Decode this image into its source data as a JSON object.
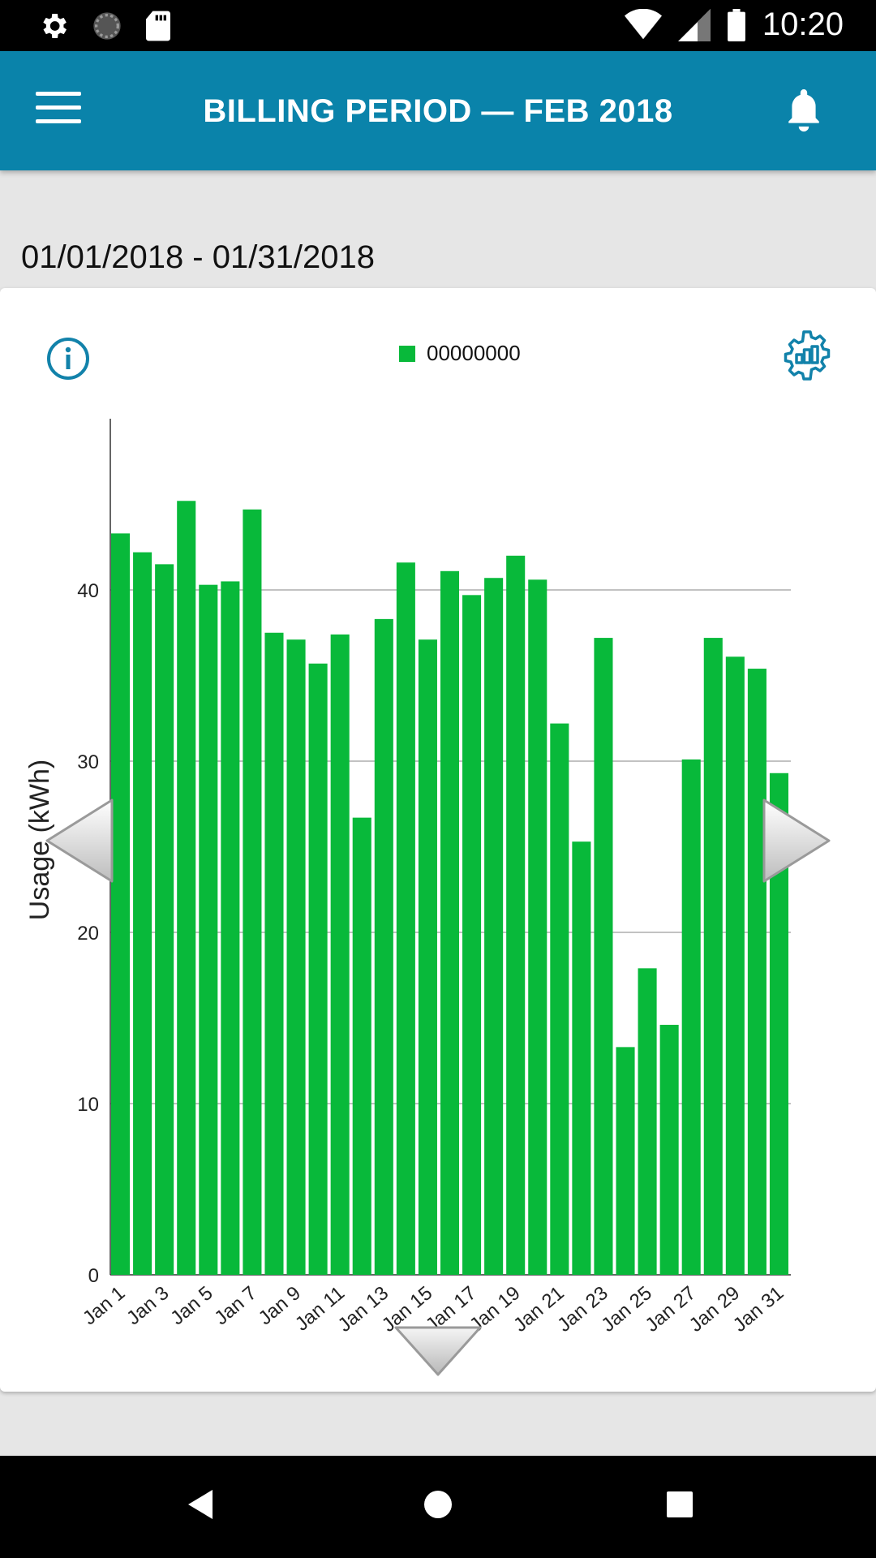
{
  "status_bar": {
    "time": "10:20",
    "icons": [
      "settings-icon",
      "sync-icon",
      "sd-card-icon",
      "wifi-icon",
      "signal-icon",
      "battery-icon"
    ]
  },
  "app_bar": {
    "title": "BILLING PERIOD  —  FEB 2018",
    "menu_icon": "menu-icon",
    "bell_icon": "bell-icon",
    "color": "#0a83aa"
  },
  "date_range": "01/01/2018 - 01/31/2018",
  "card": {
    "info_icon": "info-icon",
    "settings_icon": "chart-settings-icon"
  },
  "chart_data": {
    "type": "bar",
    "legend": [
      {
        "name": "00000000",
        "color": "#08b93a"
      }
    ],
    "ylabel": "Usage (kWh)",
    "ylim": [
      0,
      50
    ],
    "yticks": [
      0,
      10,
      20,
      30,
      40
    ],
    "categories": [
      "Jan 1",
      "Jan 2",
      "Jan 3",
      "Jan 4",
      "Jan 5",
      "Jan 6",
      "Jan 7",
      "Jan 8",
      "Jan 9",
      "Jan 10",
      "Jan 11",
      "Jan 12",
      "Jan 13",
      "Jan 14",
      "Jan 15",
      "Jan 16",
      "Jan 17",
      "Jan 18",
      "Jan 19",
      "Jan 20",
      "Jan 21",
      "Jan 22",
      "Jan 23",
      "Jan 24",
      "Jan 25",
      "Jan 26",
      "Jan 27",
      "Jan 28",
      "Jan 29",
      "Jan 30",
      "Jan 31"
    ],
    "xtick_labels": [
      "Jan 1",
      "Jan 3",
      "Jan 5",
      "Jan 7",
      "Jan 9",
      "Jan 11",
      "Jan 13",
      "Jan 15",
      "Jan 17",
      "Jan 19",
      "Jan 21",
      "Jan 23",
      "Jan 25",
      "Jan 27",
      "Jan 29",
      "Jan 31"
    ],
    "series": [
      {
        "name": "00000000",
        "color": "#08b93a",
        "values": [
          43.3,
          42.2,
          41.5,
          45.2,
          40.3,
          40.5,
          44.7,
          37.5,
          37.1,
          35.7,
          37.4,
          26.7,
          38.3,
          41.6,
          37.1,
          41.1,
          39.7,
          40.7,
          42.0,
          40.6,
          32.2,
          25.3,
          37.2,
          13.3,
          17.9,
          14.6,
          30.1,
          37.2,
          36.1,
          35.4,
          29.3
        ]
      }
    ],
    "grid": true
  },
  "nav": {
    "prev_icon": "chevron-left-icon",
    "next_icon": "chevron-right-icon",
    "down_icon": "chevron-down-icon"
  },
  "system_nav": [
    "back-icon",
    "home-icon",
    "recents-icon"
  ]
}
